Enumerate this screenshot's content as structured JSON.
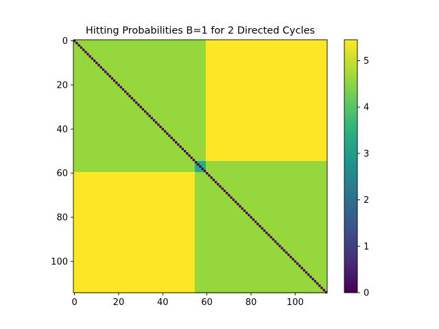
{
  "chart_data": {
    "type": "heatmap",
    "title": "Hitting Probabilities B=1 for 2 Directed Cycles",
    "xlabel": "",
    "ylabel": "",
    "n": 115,
    "blocks": [
      {
        "rows": [
          0,
          59
        ],
        "cols": [
          0,
          59
        ],
        "value": 4.6
      },
      {
        "rows": [
          0,
          54
        ],
        "cols": [
          60,
          114
        ],
        "value": 5.45
      },
      {
        "rows": [
          60,
          114
        ],
        "cols": [
          0,
          54
        ],
        "value": 5.45
      },
      {
        "rows": [
          55,
          114
        ],
        "cols": [
          55,
          114
        ],
        "value": 4.6
      },
      {
        "rows": [
          55,
          59
        ],
        "cols": [
          55,
          59
        ],
        "value": 3.4
      }
    ],
    "diagonal_value": 0,
    "xticks": [
      0,
      20,
      40,
      60,
      80,
      100
    ],
    "yticks": [
      0,
      20,
      40,
      60,
      80,
      100
    ],
    "colorbar": {
      "min": 0,
      "max": 5.45,
      "ticks": [
        0,
        1,
        2,
        3,
        4,
        5
      ]
    },
    "colormap": "viridis",
    "colors": {
      "low": "#440154",
      "mid": "#21918c",
      "high": "#fde725"
    }
  }
}
